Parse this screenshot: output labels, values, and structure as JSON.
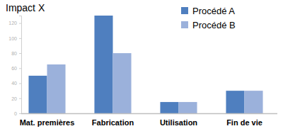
{
  "chart_data": {
    "type": "bar",
    "title": "Impact X",
    "categories": [
      "Mat. premières",
      "Fabrication",
      "Utilisation",
      "Fin de vie"
    ],
    "series": [
      {
        "name": "Procédé A",
        "color": "#4f7fbf",
        "values": [
          50,
          130,
          15,
          30
        ]
      },
      {
        "name": "Procédé B",
        "color": "#9bb1db",
        "values": [
          65,
          80,
          15,
          30
        ]
      }
    ],
    "ylim": [
      0,
      130
    ],
    "yticks": [
      0,
      20,
      40,
      60,
      80,
      100,
      120
    ],
    "grid": false,
    "legend": "top-right"
  }
}
